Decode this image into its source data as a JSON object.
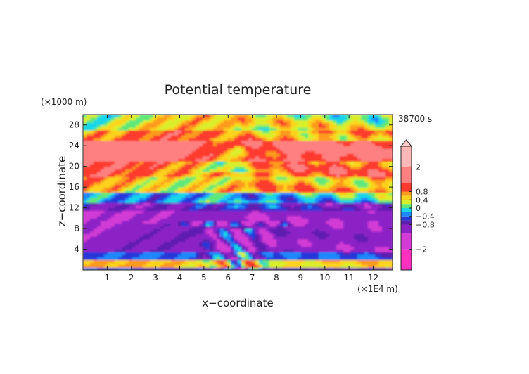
{
  "chart_data": {
    "type": "heatmap",
    "title": "Potential temperature",
    "xlabel": "x−coordinate",
    "ylabel": "z−coordinate",
    "x_unit": "(×1E4 m)",
    "y_unit": "(×1000 m)",
    "time_label": "38700 s",
    "xlim": [
      0,
      12.8
    ],
    "ylim": [
      0,
      30
    ],
    "x_ticks": [
      1,
      2,
      3,
      4,
      5,
      6,
      7,
      8,
      9,
      10,
      11,
      12
    ],
    "y_ticks": [
      4,
      8,
      12,
      16,
      20,
      24,
      28
    ],
    "colorbar": {
      "range": [
        -3,
        3
      ],
      "tick_values": [
        2,
        0.8,
        0.4,
        0,
        -0.4,
        -0.8,
        -2
      ],
      "tick_labels": [
        "2",
        "0.8",
        "0.4",
        "0",
        "−0.4",
        "−0.8",
        "−2"
      ],
      "extend": "max",
      "levels": [
        -3,
        -2,
        -1.2,
        -0.8,
        -0.6,
        -0.4,
        -0.2,
        0,
        0.2,
        0.4,
        0.6,
        0.8,
        1.2,
        2,
        3
      ],
      "colors": [
        "#ff2fbf",
        "#d33ad6",
        "#8c22c6",
        "#5e1fb0",
        "#2838d9",
        "#1e88ff",
        "#19d6e8",
        "#5fe87a",
        "#d9ee2c",
        "#ffd21f",
        "#ff9a1f",
        "#ff3a2e",
        "#ff8080",
        "#ffb8b8"
      ],
      "extend_color": "#ffcccc"
    },
    "bands": [
      {
        "z_range": [
          0,
          0.6
        ],
        "value": -0.6
      },
      {
        "z_range": [
          0.6,
          2.2
        ],
        "value": 0.5
      },
      {
        "z_range": [
          2.2,
          3.6
        ],
        "value": -0.5
      },
      {
        "z_range": [
          3.6,
          9
        ],
        "value": -1.0
      },
      {
        "z_range": [
          9,
          11.5
        ],
        "value": -1.1
      },
      {
        "z_range": [
          11.5,
          13
        ],
        "value": -0.7
      },
      {
        "z_range": [
          13,
          15
        ],
        "value": -0.1
      },
      {
        "z_range": [
          15,
          18
        ],
        "value": 0.6
      },
      {
        "z_range": [
          18,
          21
        ],
        "value": 0.9
      },
      {
        "z_range": [
          21,
          25
        ],
        "value": 1.4
      },
      {
        "z_range": [
          25,
          27
        ],
        "value": 0.7
      },
      {
        "z_range": [
          27,
          30
        ],
        "value": 0.3
      }
    ]
  }
}
